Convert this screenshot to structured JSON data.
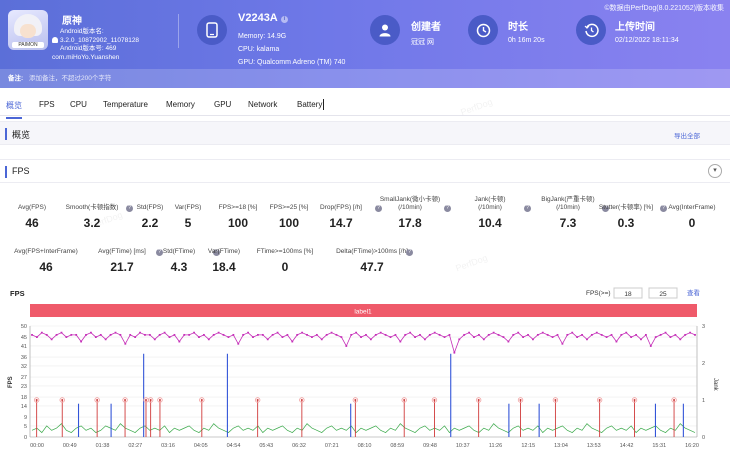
{
  "header": {
    "copyright": "©数据由PerfDog(8.0.221052)版本收集",
    "app": {
      "name": "原神",
      "icon_name": "app-icon",
      "icon_label": "PAIMON",
      "version_label": "Android版本名:",
      "version_name": "3.2.0_10872902_11078128",
      "version_code": "Android版本号: 469",
      "package": "com.miHoYo.Yuanshen"
    },
    "device": {
      "model": "V2243A",
      "memory": "Memory: 14.9G",
      "cpu": "CPU: kalama",
      "gpu": "GPU: Qualcomm Adreno (TM) 740"
    },
    "creator": {
      "label": "创建者",
      "value": "冠冠 网"
    },
    "duration": {
      "label": "时长",
      "value": "0h 16m 20s"
    },
    "upload": {
      "label": "上传时间",
      "value": "02/12/2022 18:11:34"
    },
    "remark": {
      "label": "备注:",
      "placeholder": "添加备注，不超过200个字符"
    }
  },
  "tabs": [
    "概览",
    "FPS",
    "CPU",
    "Temperature",
    "Memory",
    "GPU",
    "Network",
    "Battery"
  ],
  "overview": {
    "title": "概览",
    "export_all": "导出全部"
  },
  "fps": {
    "title": "FPS",
    "row1": [
      {
        "label": "Avg(FPS)",
        "value": "46",
        "help": false
      },
      {
        "label": "Smooth(卡顿指数)",
        "value": "3.2",
        "help": true
      },
      {
        "label": "Std(FPS)",
        "value": "2.2",
        "help": false
      },
      {
        "label": "Var(FPS)",
        "value": "5",
        "help": false
      },
      {
        "label": "FPS>=18 [%]",
        "value": "100",
        "help": false
      },
      {
        "label": "FPS>=25 [%]",
        "value": "100",
        "help": false
      },
      {
        "label": "Drop(FPS) [/h]",
        "value": "14.7",
        "help": true
      },
      {
        "label": "SmallJank(微小卡顿)",
        "label2": "(/10min)",
        "value": "17.8",
        "help": true
      },
      {
        "label": "Jank(卡顿)",
        "label2": "(/10min)",
        "value": "10.4",
        "help": true
      },
      {
        "label": "BigJank(严重卡顿)",
        "label2": "(/10min)",
        "value": "7.3",
        "help": true
      },
      {
        "label": "Stutter(卡顿率) [%]",
        "value": "0.3",
        "help": true
      },
      {
        "label": "Avg(InterFrame)",
        "value": "0",
        "help": false
      }
    ],
    "row2": [
      {
        "label": "Avg(FPS+InterFrame)",
        "value": "46",
        "help": false
      },
      {
        "label": "Avg(FTime) [ms]",
        "value": "21.7",
        "help": true
      },
      {
        "label": "Std(FTime)",
        "value": "4.3",
        "help": true
      },
      {
        "label": "Var(FTime)",
        "value": "18.4",
        "help": false
      },
      {
        "label": "FTime>=100ms [%]",
        "value": "0",
        "help": false
      },
      {
        "label": "Delta(FTime)>100ms [/h]",
        "value": "47.7",
        "help": true
      }
    ],
    "threshold_label": "FPS(>=)",
    "threshold_1": "18",
    "threshold_2": "25",
    "query": "查看",
    "chart_title": "FPS"
  },
  "chart_data": {
    "type": "line",
    "label_band": "label1",
    "y_left": {
      "label": "FPS",
      "ticks": [
        0,
        5,
        9,
        14,
        18,
        23,
        27,
        32,
        36,
        41,
        45,
        50
      ]
    },
    "y_right": {
      "label": "Jank",
      "ticks": [
        0,
        1,
        2,
        3
      ]
    },
    "x_ticks": [
      "00:00",
      "00:49",
      "01:38",
      "02:27",
      "03:16",
      "04:05",
      "04:54",
      "05:43",
      "06:32",
      "07:21",
      "08:10",
      "08:59",
      "09:48",
      "10:37",
      "11:26",
      "12:15",
      "13:04",
      "13:53",
      "14:42",
      "15:31",
      "16:20"
    ],
    "series": [
      {
        "name": "FPS",
        "color": "#c52fb8",
        "values": [
          46,
          45,
          47,
          46,
          44,
          46,
          47,
          45,
          46,
          46,
          43,
          46,
          47,
          45,
          46,
          44,
          46,
          47,
          46,
          42,
          46,
          45,
          47,
          46,
          46,
          44,
          46,
          47,
          45,
          46,
          43,
          46,
          46,
          47,
          45,
          46,
          44,
          46,
          47,
          46,
          45,
          46,
          42,
          46,
          47,
          45,
          46,
          46,
          44,
          46,
          47,
          45,
          46,
          43,
          46,
          47,
          46,
          45,
          46,
          44,
          46,
          47,
          46,
          45,
          41,
          46,
          47,
          45,
          46,
          44,
          46,
          47,
          46,
          45,
          46,
          43,
          46,
          47,
          45,
          46,
          44,
          46,
          47,
          46,
          45,
          46,
          38,
          44,
          46,
          47,
          45,
          46,
          44,
          46,
          47,
          46,
          45,
          43,
          46,
          47,
          45,
          46,
          44,
          46,
          47,
          46,
          45,
          46,
          42,
          46,
          47,
          45,
          46,
          44,
          46,
          47,
          46,
          45,
          46,
          43,
          46,
          47,
          45,
          46,
          44,
          46,
          41,
          45,
          46,
          47,
          45,
          46,
          44,
          46,
          47,
          46
        ]
      },
      {
        "name": "FTime",
        "color": "#3aa94a",
        "values": [
          3,
          4,
          2,
          5,
          3,
          4,
          6,
          3,
          2,
          4,
          5,
          3,
          4,
          2,
          3,
          5,
          4,
          3,
          6,
          4,
          3,
          2,
          4,
          5,
          3,
          4,
          3,
          5,
          2,
          4,
          3,
          4,
          5,
          3,
          2,
          4,
          3,
          6,
          4,
          3,
          2,
          4,
          5,
          3,
          4,
          3,
          5,
          2,
          4,
          3,
          4,
          5,
          3,
          2,
          4,
          3,
          6,
          4,
          3,
          2,
          4,
          5,
          3,
          4,
          3,
          5,
          2,
          4,
          3,
          4,
          5,
          3,
          2,
          4,
          3,
          6,
          4,
          3,
          2,
          4,
          5,
          3,
          4,
          3,
          5,
          2,
          4,
          3,
          4,
          5,
          3,
          2,
          4,
          3,
          6,
          4,
          3,
          2,
          4,
          5,
          3,
          4,
          3,
          5,
          2,
          4,
          3,
          4,
          5,
          3,
          2,
          4,
          3,
          6,
          4,
          3,
          2,
          4,
          5,
          3,
          4,
          3,
          5,
          2,
          4,
          3,
          4,
          5,
          3,
          2,
          4,
          3,
          6,
          4,
          3,
          2
        ]
      },
      {
        "name": "Jank",
        "color": "#d03a3a",
        "positions": [
          2,
          13,
          28,
          40,
          49,
          51,
          55,
          73,
          97,
          116,
          139,
          160,
          173,
          192,
          210,
          225,
          244,
          259,
          276
        ]
      },
      {
        "name": "BigJank",
        "color": "#3355d8",
        "positions": [
          20,
          34,
          48,
          84,
          137,
          180,
          205,
          218,
          268,
          280
        ]
      }
    ]
  }
}
